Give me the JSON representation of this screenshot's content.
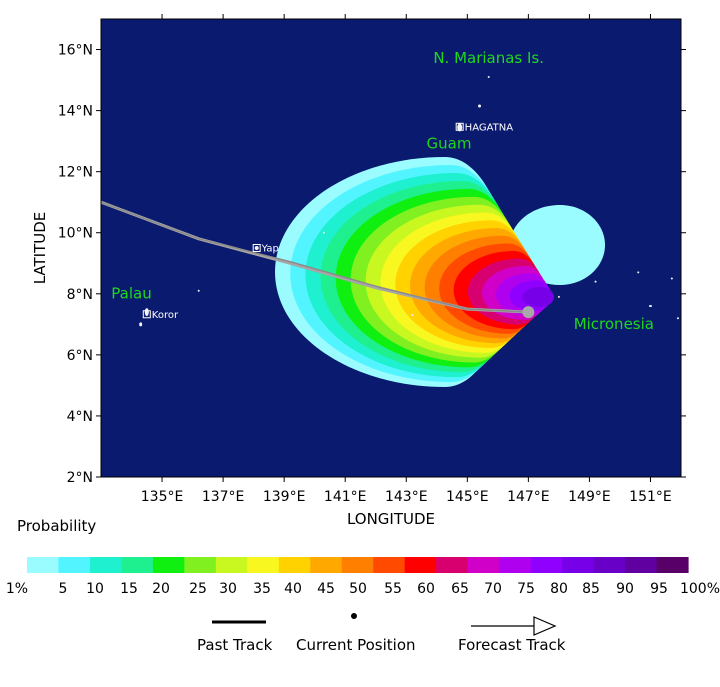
{
  "map": {
    "xlabel": "LONGITUDE",
    "ylabel": "LATITUDE",
    "lon_range": [
      133,
      152
    ],
    "lat_range": [
      2,
      17
    ],
    "lon_ticks": [
      "135°E",
      "137°E",
      "139°E",
      "141°E",
      "143°E",
      "145°E",
      "147°E",
      "149°E",
      "151°E"
    ],
    "lat_ticks": [
      "2°N",
      "4°N",
      "6°N",
      "8°N",
      "10°N",
      "12°N",
      "14°N",
      "16°N"
    ],
    "ocean_color": "#0a1a6e",
    "regions": [
      {
        "name": "N. Marianas Is.",
        "lon": 145.7,
        "lat": 15.7
      },
      {
        "name": "Guam",
        "lon": 144.4,
        "lat": 12.9
      },
      {
        "name": "Palau",
        "lon": 134.0,
        "lat": 8.0
      },
      {
        "name": "Micronesia",
        "lon": 149.8,
        "lat": 7.0
      }
    ],
    "cities": [
      {
        "name": "HAGATNA",
        "lon": 144.75,
        "lat": 13.47
      },
      {
        "name": "Yap",
        "lon": 138.1,
        "lat": 9.5
      },
      {
        "name": "Koror",
        "lon": 134.5,
        "lat": 7.33
      }
    ],
    "past_track": [
      [
        133.0,
        11.0
      ],
      [
        136.2,
        9.8
      ],
      [
        139.2,
        9.05
      ],
      [
        142.0,
        8.25
      ],
      [
        145.0,
        7.5
      ],
      [
        147.0,
        7.4
      ]
    ],
    "forecast_track": [
      [
        133.0,
        11.0
      ],
      [
        136.2,
        9.8
      ],
      [
        139.2,
        9.0
      ],
      [
        142.0,
        8.2
      ],
      [
        145.0,
        7.5
      ],
      [
        147.0,
        7.4
      ]
    ],
    "current_position": [
      147.0,
      7.4
    ]
  },
  "probability": {
    "title": "Probability",
    "labels": [
      "1%",
      "5",
      "10",
      "15",
      "20",
      "25",
      "30",
      "35",
      "40",
      "45",
      "50",
      "55",
      "60",
      "65",
      "70",
      "75",
      "80",
      "85",
      "90",
      "95",
      "100%"
    ],
    "colors": [
      "#9bfcff",
      "#52f5ff",
      "#1ff0d0",
      "#1ef090",
      "#10f010",
      "#80f020",
      "#c8f820",
      "#f8f820",
      "#ffd200",
      "#ffa800",
      "#ff7f00",
      "#ff4a00",
      "#ff0000",
      "#d8006e",
      "#d000c8",
      "#b000f0",
      "#9000ff",
      "#7800e8",
      "#6800c8",
      "#6000a0",
      "#580068"
    ]
  },
  "legend": {
    "past_track": "Past Track",
    "current_position": "Current Position",
    "forecast_track": "Forecast Track"
  }
}
